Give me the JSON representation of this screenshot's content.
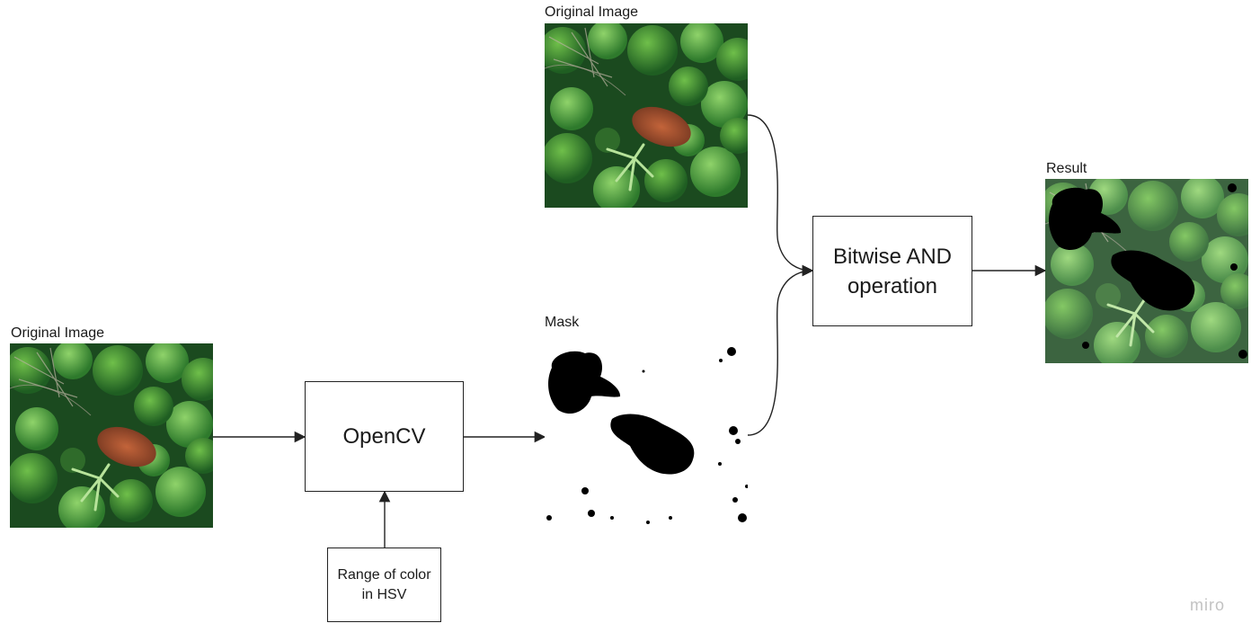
{
  "nodes": {
    "original_left": {
      "label": "Original Image",
      "image": "forest-aerial-photo"
    },
    "opencv": {
      "label": "OpenCV"
    },
    "range": {
      "label": "Range of color in HSV"
    },
    "mask": {
      "label": "Mask",
      "image": "binary-mask"
    },
    "original_top": {
      "label": "Original Image",
      "image": "forest-aerial-photo"
    },
    "bitwise": {
      "label": "Bitwise AND operation"
    },
    "result": {
      "label": "Result",
      "image": "masked-forest-photo"
    }
  },
  "edges": [
    {
      "from": "original_left",
      "to": "opencv"
    },
    {
      "from": "range",
      "to": "opencv"
    },
    {
      "from": "opencv",
      "to": "mask"
    },
    {
      "from": "original_top",
      "to": "bitwise"
    },
    {
      "from": "mask",
      "to": "bitwise"
    },
    {
      "from": "bitwise",
      "to": "result"
    }
  ],
  "watermark": "miro"
}
